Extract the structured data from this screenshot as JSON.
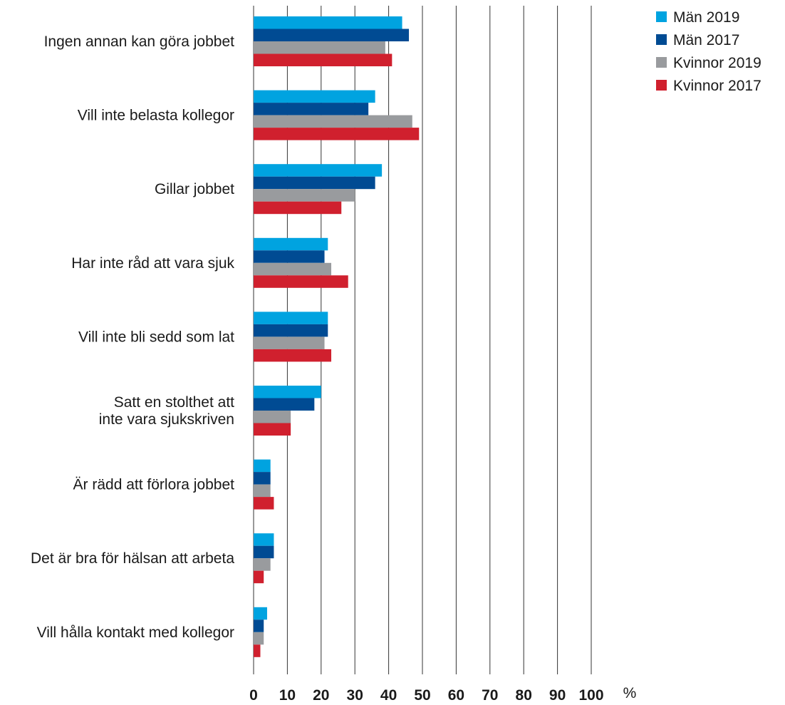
{
  "chart_data": {
    "type": "bar",
    "orientation": "horizontal",
    "categories": [
      [
        "Ingen annan kan göra jobbet"
      ],
      [
        "Vill inte belasta kollegor"
      ],
      [
        "Gillar jobbet"
      ],
      [
        "Har inte råd att vara sjuk"
      ],
      [
        "Vill inte bli sedd som lat"
      ],
      [
        "Satt en stolthet att",
        "inte vara sjukskriven"
      ],
      [
        "Är rädd att förlora jobbet"
      ],
      [
        "Det är bra för hälsan att arbeta"
      ],
      [
        "Vill hålla kontakt med kollegor"
      ]
    ],
    "series": [
      {
        "name": "Män 2019",
        "color": "#00a3e0",
        "values": [
          44,
          36,
          38,
          22,
          22,
          20,
          5,
          6,
          4
        ]
      },
      {
        "name": "Män 2017",
        "color": "#004b93",
        "values": [
          46,
          34,
          36,
          21,
          22,
          18,
          5,
          6,
          3
        ]
      },
      {
        "name": "Kvinnor 2019",
        "color": "#999b9e",
        "values": [
          39,
          47,
          30,
          23,
          21,
          11,
          5,
          5,
          3
        ]
      },
      {
        "name": "Kvinnor 2017",
        "color": "#d0202e",
        "values": [
          41,
          49,
          26,
          28,
          23,
          11,
          6,
          3,
          2
        ]
      }
    ],
    "xticks": [
      "0",
      "10",
      "20",
      "30",
      "40",
      "50",
      "60",
      "70",
      "80",
      "90",
      "100"
    ],
    "xlim": [
      0,
      100
    ],
    "x_unit": "%",
    "grid": true,
    "legend_position": "top-right"
  }
}
